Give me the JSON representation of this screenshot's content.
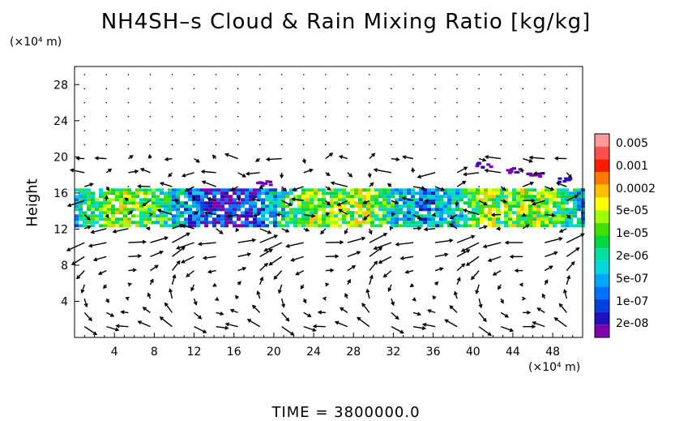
{
  "title": "NH4SH–s Cloud & Rain Mixing Ratio [kg/kg]",
  "y_unit": "(×10⁴ m)",
  "x_unit": "(×10⁴ m)",
  "ylabel": "Height",
  "time_label": "TIME  =  3800000.0",
  "chart_data": {
    "type": "heatmap",
    "title": "NH4SH–s Cloud & Rain Mixing Ratio [kg/kg]",
    "xlabel": "(×10⁴ m)",
    "ylabel": "Height",
    "xlim": [
      0,
      51
    ],
    "ylim": [
      0,
      30
    ],
    "x_ticks": [
      "4",
      "8",
      "12",
      "16",
      "20",
      "24",
      "28",
      "32",
      "36",
      "40",
      "44",
      "48"
    ],
    "y_ticks": [
      "4",
      "8",
      "12",
      "16",
      "20",
      "24",
      "28"
    ],
    "colorbar": {
      "labels": [
        "0.005",
        "0.001",
        "0.0002",
        "5e-05",
        "1e-05",
        "2e-06",
        "5e-07",
        "1e-07",
        "2e-08"
      ],
      "colors": [
        "#ff9a9a",
        "#ff5050",
        "#ff1a00",
        "#ff7a00",
        "#ffc000",
        "#ffff00",
        "#a0ff00",
        "#44e000",
        "#00d840",
        "#00e0a0",
        "#00d8e0",
        "#00a8ff",
        "#0070ff",
        "#0040e0",
        "#2010c0",
        "#8000b0"
      ]
    },
    "cloud_layer": {
      "ybottom": 12.5,
      "ytop": 16.5,
      "xstart": 0,
      "xend": 51
    },
    "overlay": "wind vectors"
  }
}
